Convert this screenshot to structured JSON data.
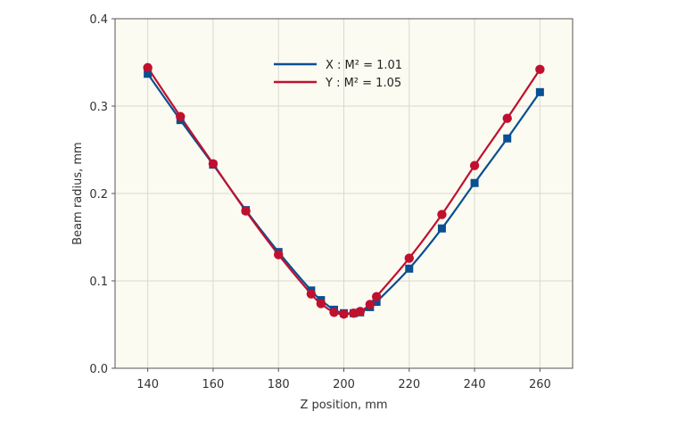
{
  "chart_data": {
    "type": "line",
    "title": "",
    "xlabel": "Z position, mm",
    "ylabel": "Beam radius, mm",
    "xlim": [
      130,
      270
    ],
    "ylim": [
      0.0,
      0.4
    ],
    "xticks": [
      140,
      160,
      180,
      200,
      220,
      240,
      260
    ],
    "yticks": [
      0.0,
      0.1,
      0.2,
      0.3,
      0.4
    ],
    "xtick_labels": [
      "140",
      "160",
      "180",
      "200",
      "220",
      "240",
      "260"
    ],
    "ytick_labels": [
      "0.0",
      "0.1",
      "0.2",
      "0.3",
      "0.4"
    ],
    "grid": true,
    "legend_position": "top-center",
    "plot_background": "#fbfbf1",
    "series": [
      {
        "name": "X : M² = 1.01",
        "color": "#0a4f93",
        "marker": "square",
        "x": [
          140,
          150,
          160,
          170,
          180,
          190,
          193,
          197,
          200,
          203,
          205,
          208,
          210,
          220,
          230,
          240,
          250,
          260
        ],
        "y": [
          0.337,
          0.284,
          0.233,
          0.181,
          0.133,
          0.089,
          0.078,
          0.067,
          0.063,
          0.063,
          0.064,
          0.07,
          0.076,
          0.114,
          0.16,
          0.212,
          0.263,
          0.316
        ]
      },
      {
        "name": "Y : M² = 1.05",
        "color": "#c0102e",
        "marker": "circle",
        "x": [
          140,
          150,
          160,
          170,
          180,
          190,
          193,
          197,
          200,
          203,
          205,
          208,
          210,
          220,
          230,
          240,
          250,
          260
        ],
        "y": [
          0.344,
          0.288,
          0.234,
          0.18,
          0.13,
          0.085,
          0.074,
          0.064,
          0.062,
          0.063,
          0.065,
          0.073,
          0.082,
          0.126,
          0.176,
          0.232,
          0.286,
          0.342
        ]
      }
    ]
  }
}
